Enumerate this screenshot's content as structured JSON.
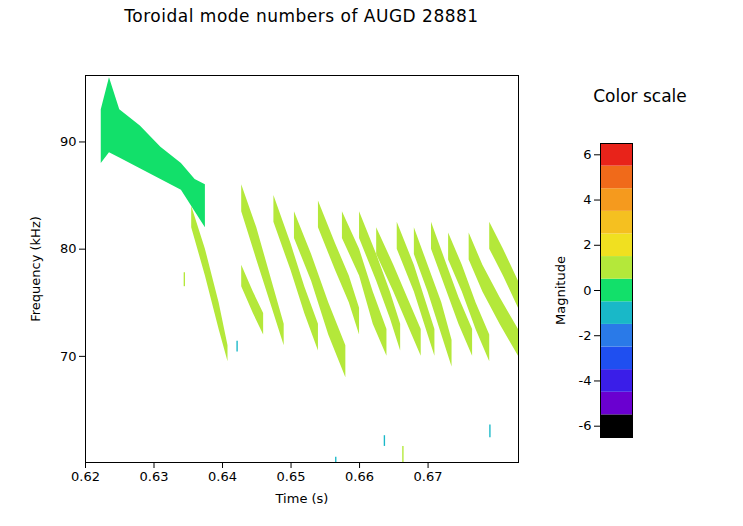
{
  "chart_data": {
    "type": "spectrogram",
    "title": "Toroidal mode numbers of AUGD 28881",
    "xlabel": "Time (s)",
    "ylabel": "Frequency (kHz)",
    "xlim": [
      0.62,
      0.6832
    ],
    "ylim": [
      60.1,
      96.2
    ],
    "xticks": [
      0.62,
      0.63,
      0.64,
      0.65,
      0.66,
      0.67
    ],
    "yticks": [
      70,
      80,
      90
    ],
    "traces": [
      {
        "mode": 0,
        "t": [
          0.6223,
          0.6235,
          0.625,
          0.628,
          0.631,
          0.634,
          0.636,
          0.6375
        ],
        "f_low": [
          88,
          89,
          88.5,
          87.5,
          86.5,
          85.5,
          83.5,
          82
        ],
        "f_high": [
          93,
          96,
          93,
          91.5,
          89.5,
          88,
          86.5,
          86
        ]
      },
      {
        "mode": 1,
        "t": [
          0.6355,
          0.6375,
          0.6395,
          0.6408
        ],
        "f_low": [
          82,
          77.5,
          72.5,
          69.5
        ],
        "f_high": [
          84,
          80,
          75,
          71
        ]
      },
      {
        "mode": 1,
        "t": [
          0.6344,
          0.6346
        ],
        "f_low": [
          76.5,
          76.5
        ],
        "f_high": [
          77.8,
          77.8
        ]
      },
      {
        "mode": 1,
        "t": [
          0.6428,
          0.645,
          0.647,
          0.649
        ],
        "f_low": [
          83.5,
          79,
          75,
          71
        ],
        "f_high": [
          86,
          82,
          77.5,
          73
        ]
      },
      {
        "mode": 1,
        "t": [
          0.6428,
          0.6445,
          0.646
        ],
        "f_low": [
          76.5,
          74,
          72
        ],
        "f_high": [
          78.5,
          76,
          74
        ]
      },
      {
        "mode": 1,
        "t": [
          0.6475,
          0.65,
          0.652,
          0.654
        ],
        "f_low": [
          82.5,
          78,
          74,
          70.5
        ],
        "f_high": [
          85,
          80.5,
          76.5,
          73
        ]
      },
      {
        "mode": 1,
        "t": [
          0.6505,
          0.653,
          0.6555,
          0.658
        ],
        "f_low": [
          81,
          77,
          72,
          68
        ],
        "f_high": [
          83.5,
          79.5,
          75,
          71
        ]
      },
      {
        "mode": 1,
        "t": [
          0.654,
          0.6565,
          0.6585,
          0.66
        ],
        "f_low": [
          82,
          78,
          75,
          72
        ],
        "f_high": [
          84.5,
          80.5,
          77.5,
          74.5
        ]
      },
      {
        "mode": 1,
        "t": [
          0.6575,
          0.66,
          0.662,
          0.664
        ],
        "f_low": [
          81,
          77.5,
          73,
          70
        ],
        "f_high": [
          83.5,
          80,
          76,
          72.5
        ]
      },
      {
        "mode": 1,
        "t": [
          0.66,
          0.6625,
          0.6645,
          0.666
        ],
        "f_low": [
          81,
          77,
          73.5,
          70.5
        ],
        "f_high": [
          83.5,
          79.5,
          76,
          73
        ]
      },
      {
        "mode": 1,
        "t": [
          0.6625,
          0.665,
          0.667,
          0.669
        ],
        "f_low": [
          79.5,
          76,
          73,
          70
        ],
        "f_high": [
          82,
          78.5,
          75.5,
          72.5
        ]
      },
      {
        "mode": 1,
        "t": [
          0.6655,
          0.668,
          0.6695,
          0.671
        ],
        "f_low": [
          80,
          76,
          73,
          70
        ],
        "f_high": [
          82.5,
          78.5,
          75.5,
          72.5
        ]
      },
      {
        "mode": 1,
        "t": [
          0.668,
          0.67,
          0.672,
          0.6735
        ],
        "f_low": [
          79.5,
          76,
          72,
          69
        ],
        "f_high": [
          82,
          78.5,
          75,
          71.5
        ]
      },
      {
        "mode": 1,
        "t": [
          0.6705,
          0.6725,
          0.6745,
          0.6765
        ],
        "f_low": [
          80,
          76.5,
          73,
          70
        ],
        "f_high": [
          82.5,
          79,
          75.5,
          72.5
        ]
      },
      {
        "mode": 1,
        "t": [
          0.673,
          0.675,
          0.677,
          0.679
        ],
        "f_low": [
          79,
          76,
          72.5,
          69.5
        ],
        "f_high": [
          81.5,
          78.5,
          75,
          72
        ]
      },
      {
        "mode": 1,
        "t": [
          0.676,
          0.678,
          0.6805,
          0.6832
        ],
        "f_low": [
          79,
          76,
          73,
          70
        ],
        "f_high": [
          81.5,
          78.5,
          75.5,
          72.5
        ]
      },
      {
        "mode": 1,
        "t": [
          0.679,
          0.681,
          0.6832
        ],
        "f_low": [
          80,
          77.5,
          74.5
        ],
        "f_high": [
          82.5,
          80,
          77
        ]
      },
      {
        "mode": -1,
        "t": [
          0.6421,
          0.6423
        ],
        "f_low": [
          70.4,
          70.4
        ],
        "f_high": [
          71.4,
          71.4
        ]
      },
      {
        "mode": -1,
        "t": [
          0.6565,
          0.6567
        ],
        "f_low": [
          60.1,
          60.1
        ],
        "f_high": [
          60.6,
          60.6
        ]
      },
      {
        "mode": -1,
        "t": [
          0.6636,
          0.6638
        ],
        "f_low": [
          61.6,
          61.6
        ],
        "f_high": [
          62.6,
          62.6
        ]
      },
      {
        "mode": -1,
        "t": [
          0.679,
          0.6792
        ],
        "f_low": [
          62.4,
          62.4
        ],
        "f_high": [
          63.6,
          63.6
        ]
      },
      {
        "mode": 1,
        "t": [
          0.6663,
          0.6665
        ],
        "f_low": [
          60.1,
          60.1
        ],
        "f_high": [
          61.6,
          61.6
        ]
      }
    ],
    "color_bar": {
      "title": "Color scale",
      "label": "Magnitude",
      "range": [
        -6.5,
        6.5
      ],
      "ticks": [
        -6,
        -4,
        -2,
        0,
        2,
        4,
        6
      ],
      "colors": [
        "#000000",
        "#6a00d0",
        "#3a1ee8",
        "#1f4ff0",
        "#2a7ae8",
        "#19b8c8",
        "#12e06a",
        "#b4e83a",
        "#f0e020",
        "#f5c020",
        "#f59a1e",
        "#f06a1a",
        "#e8231a"
      ]
    }
  }
}
